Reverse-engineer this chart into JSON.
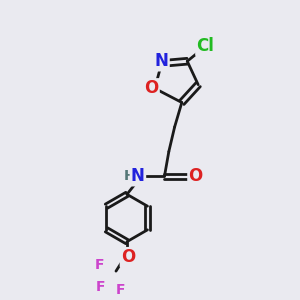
{
  "background_color": "#eaeaf0",
  "bond_color": "#1a1a1a",
  "bond_width": 2.0,
  "atom_colors": {
    "Cl": "#22bb22",
    "N": "#2222dd",
    "O": "#dd2222",
    "F": "#cc44cc",
    "H": "#557777",
    "C": "#1a1a1a"
  },
  "font_size_main": 12,
  "font_size_small": 10,
  "font_size_cl": 12
}
